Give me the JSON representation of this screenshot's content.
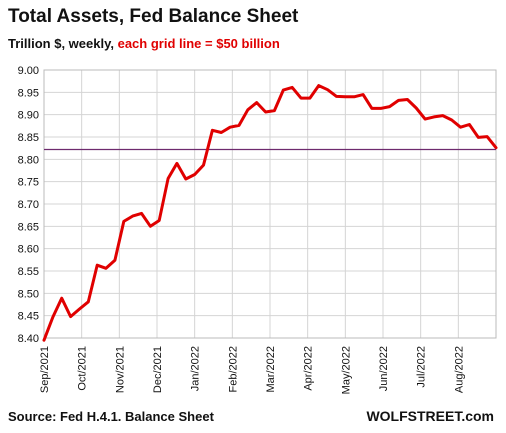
{
  "chart_data": {
    "type": "line",
    "title": "Total Assets, Fed Balance Sheet",
    "subtitle_prefix": "Trillion $, weekly, ",
    "subtitle_highlight": "each grid line = $50 billion",
    "ylim": [
      8.4,
      9.0
    ],
    "ytick_labels": [
      "9.00",
      "8.95",
      "8.90",
      "8.85",
      "8.80",
      "8.75",
      "8.70",
      "8.65",
      "8.60",
      "8.55",
      "8.50",
      "8.45",
      "8.40"
    ],
    "yticks": [
      9.0,
      8.95,
      8.9,
      8.85,
      8.8,
      8.75,
      8.7,
      8.65,
      8.6,
      8.55,
      8.5,
      8.45,
      8.4
    ],
    "xtick_labels": [
      "Sep/2021",
      "Oct/2021",
      "Nov/2021",
      "Dec/2021",
      "Jan/2022",
      "Feb/2022",
      "Mar/2022",
      "Apr/2022",
      "May/2022",
      "Jun/2022",
      "Jul/2022",
      "Aug/2022"
    ],
    "reference_line": 8.822,
    "grid": true,
    "series": [
      {
        "color": "#e00000",
        "values": [
          8.395,
          8.447,
          8.489,
          8.448,
          8.465,
          8.481,
          8.563,
          8.556,
          8.574,
          8.661,
          8.673,
          8.679,
          8.65,
          8.663,
          8.757,
          8.791,
          8.756,
          8.766,
          8.787,
          8.865,
          8.86,
          8.872,
          8.876,
          8.911,
          8.927,
          8.906,
          8.909,
          8.955,
          8.961,
          8.937,
          8.937,
          8.965,
          8.956,
          8.941,
          8.94,
          8.94,
          8.945,
          8.914,
          8.914,
          8.918,
          8.932,
          8.934,
          8.915,
          8.89,
          8.895,
          8.898,
          8.888,
          8.872,
          8.878,
          8.849,
          8.851,
          8.826
        ]
      }
    ]
  },
  "footer": {
    "source": "Source: Fed H.4.1. Balance Sheet",
    "brand": "WOLFSTREET.com"
  }
}
